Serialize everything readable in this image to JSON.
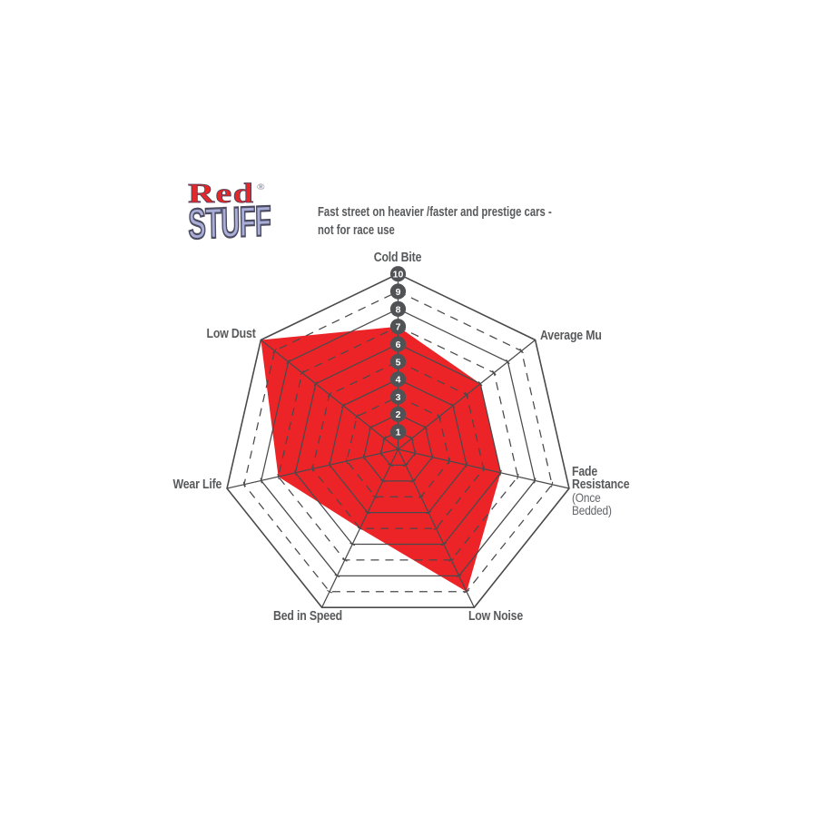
{
  "page": {
    "background": "#FFFFFF"
  },
  "logo": {
    "word1": "Red",
    "registered": "®",
    "word2": "STUFF",
    "word1_color": "#E4272B",
    "word2_fill": "#A9AED8",
    "word2_outline": "#4C4B60"
  },
  "tagline": {
    "line1": "Fast street on heavier /faster and prestige cars -",
    "line2": "not for race use"
  },
  "chart_data": {
    "type": "radar",
    "title": "",
    "axes": [
      {
        "id": "cold-bite",
        "label": "Cold Bite"
      },
      {
        "id": "average-mu",
        "label": "Average Mu"
      },
      {
        "id": "fade-resistance",
        "label": "Fade Resistance",
        "sub": "(Once Bedded)"
      },
      {
        "id": "low-noise",
        "label": "Low Noise"
      },
      {
        "id": "bed-in-speed",
        "label": "Bed in Speed"
      },
      {
        "id": "wear-life",
        "label": "Wear Life"
      },
      {
        "id": "low-dust",
        "label": "Low Dust"
      }
    ],
    "series": [
      {
        "name": "Redstuff",
        "values": [
          7,
          6,
          6,
          9,
          5,
          7,
          10
        ]
      }
    ],
    "values": [
      7,
      6,
      6,
      9,
      5,
      7,
      10
    ],
    "scale_min": 1,
    "scale_max": 10,
    "scale_ticks": [
      1,
      2,
      3,
      4,
      5,
      6,
      7,
      8,
      9,
      10
    ],
    "dashed_rings": [
      3,
      5,
      7,
      9
    ],
    "grid": true,
    "legend": "none",
    "colors": {
      "fill": "#EC2427",
      "grid": "#4A4A4C",
      "badge": "#515255",
      "badge_text": "#FFFFFF",
      "label": "#58595B"
    }
  }
}
